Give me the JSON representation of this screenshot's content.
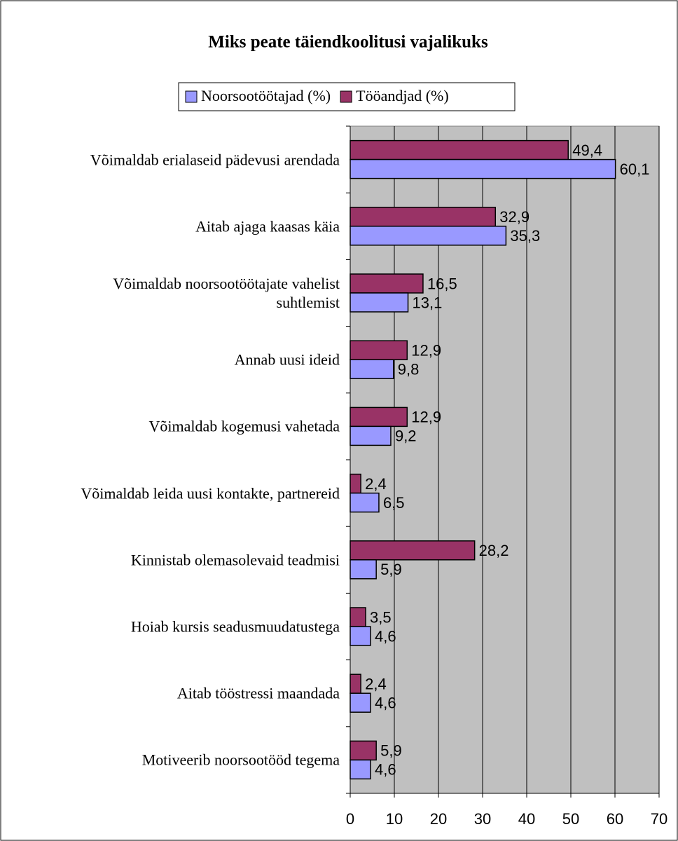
{
  "chart_data": {
    "type": "bar",
    "orientation": "horizontal",
    "title": "Miks peate täiendkoolitusi vajalikuks",
    "categories": [
      "Võimaldab erialaseid pädevusi arendada",
      "Aitab ajaga kaasas käia",
      "Võimaldab noorsootöötajate vahelist\nsuhtlemist",
      "Annab uusi ideid",
      "Võimaldab kogemusi vahetada",
      "Võimaldab leida uusi kontakte, partnereid",
      "Kinnistab olemasolevaid teadmisi",
      "Hoiab kursis seadusmuudatustega",
      "Aitab tööstressi maandada",
      "Motiveerib noorsootööd tegema"
    ],
    "series": [
      {
        "name": "Noorsootöötajad (%)",
        "color": "#9999ff",
        "values": [
          60.1,
          35.3,
          13.1,
          9.8,
          9.2,
          6.5,
          5.9,
          4.6,
          4.6,
          4.6
        ],
        "value_labels": [
          "60,1",
          "35,3",
          "13,1",
          "9,8",
          "9,2",
          "6,5",
          "5,9",
          "4,6",
          "4,6",
          "4,6"
        ]
      },
      {
        "name": "Tööandjad (%)",
        "color": "#993366",
        "values": [
          49.4,
          32.9,
          16.5,
          12.9,
          12.9,
          2.4,
          28.2,
          3.5,
          2.4,
          5.9
        ],
        "value_labels": [
          "49,4",
          "32,9",
          "16,5",
          "12,9",
          "12,9",
          "2,4",
          "28,2",
          "3,5",
          "2,4",
          "5,9"
        ]
      }
    ],
    "xlim": [
      0,
      70
    ],
    "xticks": [
      0,
      10,
      20,
      30,
      40,
      50,
      60,
      70
    ],
    "grid": true,
    "legend": "top"
  }
}
